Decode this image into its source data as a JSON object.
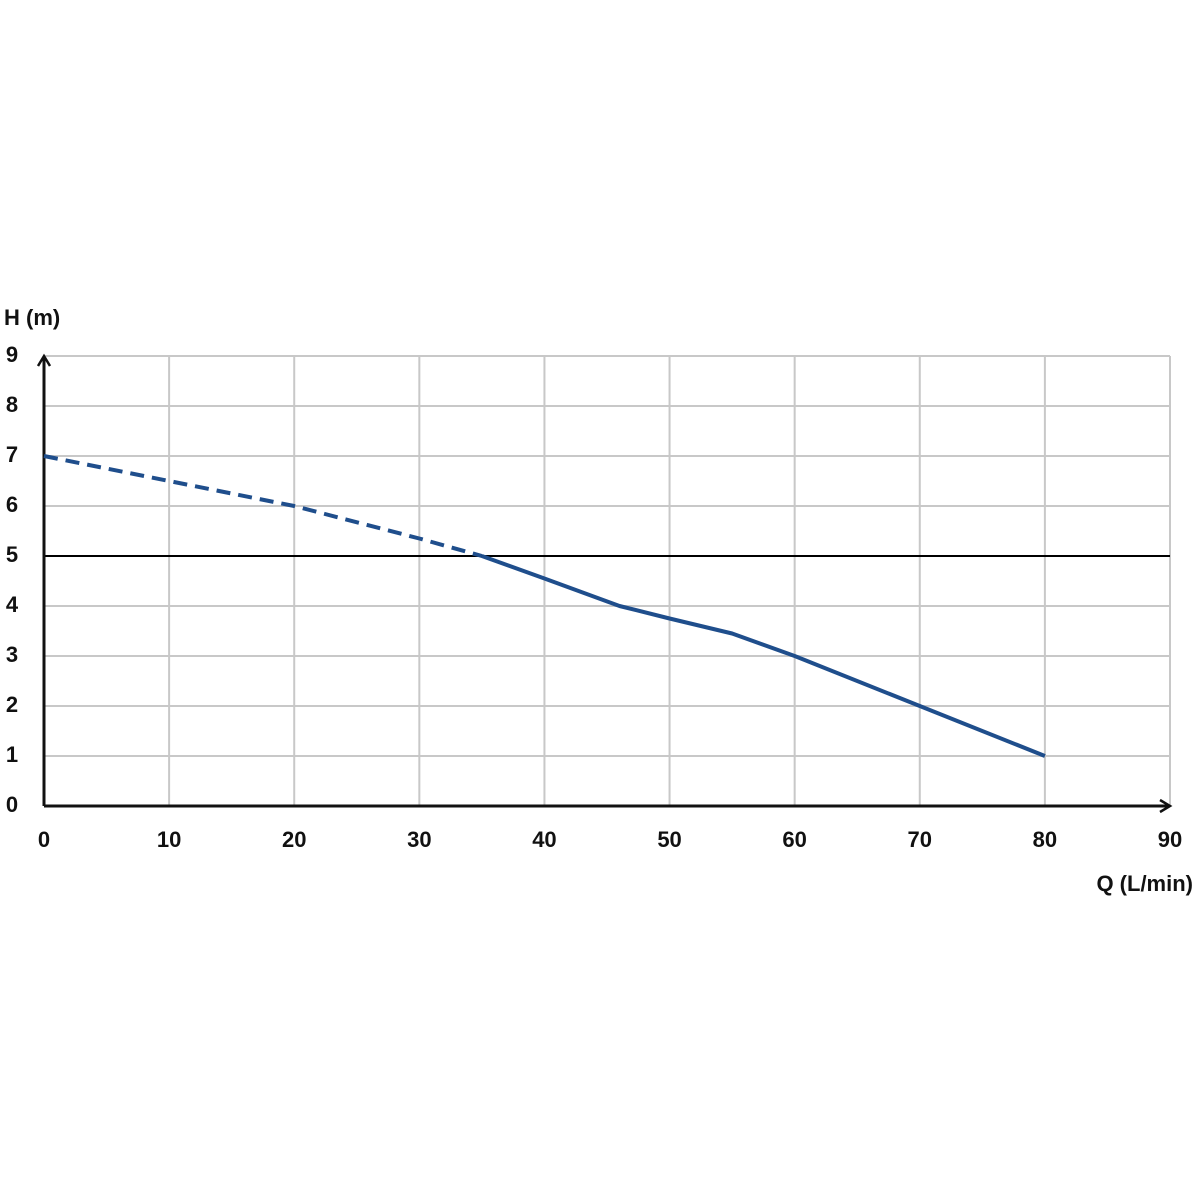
{
  "chart_data": {
    "type": "line",
    "y_label": "H (m)",
    "x_label": "Q (L/min)",
    "xlim": [
      0,
      90
    ],
    "xticks": [
      0,
      10,
      20,
      30,
      40,
      50,
      60,
      70,
      80,
      90
    ],
    "ylim": [
      0,
      9
    ],
    "yticks": [
      0,
      1,
      2,
      3,
      4,
      5,
      6,
      7,
      8,
      9
    ],
    "grid": true,
    "grid_color": "#c8c8c8",
    "reference_line": {
      "value": 5,
      "color": "#000000"
    },
    "series": [
      {
        "color": "#1f4e8c",
        "dashed": true,
        "x": [
          0,
          10,
          20,
          30,
          35
        ],
        "values": [
          7,
          6.5,
          6,
          5.35,
          5
        ]
      },
      {
        "color": "#1f4e8c",
        "dashed": false,
        "x": [
          35,
          40,
          46,
          50,
          55,
          60,
          70,
          80
        ],
        "values": [
          5,
          4.55,
          4.0,
          3.75,
          3.45,
          3.0,
          2.0,
          1.0
        ]
      }
    ]
  }
}
